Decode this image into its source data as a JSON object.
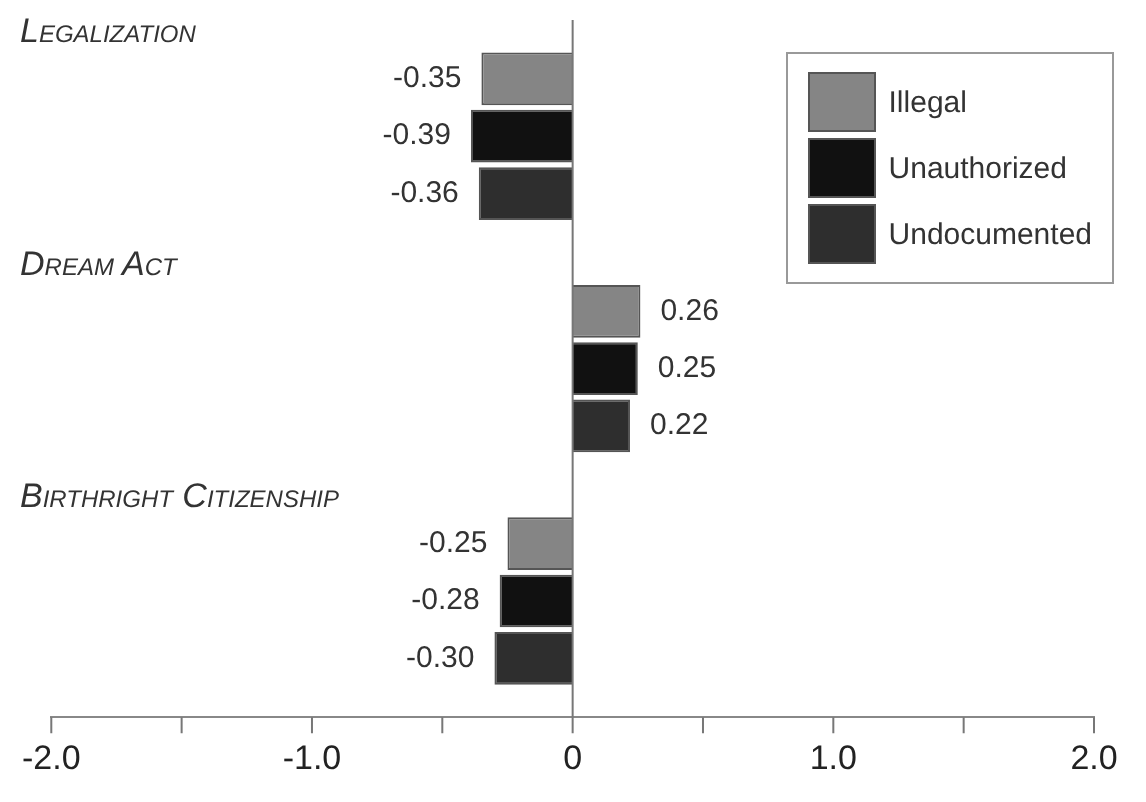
{
  "chart_data": {
    "type": "bar",
    "orientation": "horizontal",
    "categories": [
      "Legalization",
      "Dream Act",
      "Birthright Citizenship"
    ],
    "series": [
      {
        "name": "Illegal",
        "color": "#858585",
        "values": [
          -0.35,
          0.26,
          -0.25
        ],
        "value_labels": [
          "-0.35",
          "0.26",
          "-0.25"
        ]
      },
      {
        "name": "Unauthorized",
        "color": "#111111",
        "values": [
          -0.39,
          0.25,
          -0.28
        ],
        "value_labels": [
          "-0.39",
          "0.25",
          "-0.28"
        ]
      },
      {
        "name": "Undocumented",
        "color": "#2e2e2e",
        "values": [
          -0.36,
          0.22,
          -0.3
        ],
        "value_labels": [
          "-0.36",
          "0.22",
          "-0.30"
        ]
      }
    ],
    "xlim": [
      -2,
      2
    ],
    "xticks": [
      {
        "value": -2,
        "label": "-2.0"
      },
      {
        "value": -1.5,
        "label": null
      },
      {
        "value": -1,
        "label": "-1.0"
      },
      {
        "value": -0.5,
        "label": null
      },
      0,
      {
        "value": 0.5,
        "label": null
      },
      {
        "value": 1,
        "label": "1.0"
      },
      {
        "value": 1.5,
        "label": null
      },
      {
        "value": 2,
        "label": "2.0"
      }
    ],
    "legend": "top right",
    "tick_labels": "x"
  }
}
